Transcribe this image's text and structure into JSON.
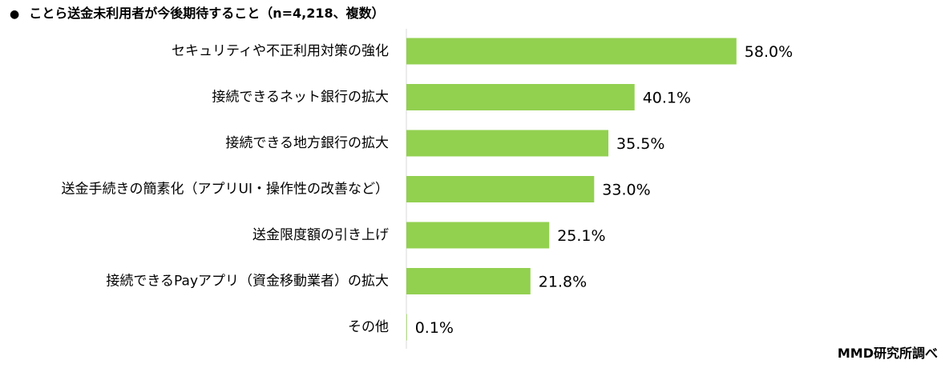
{
  "chart_data": {
    "type": "bar",
    "orientation": "horizontal",
    "title": "ことら送金未利用者が今後期待すること（n=4,218、複数）",
    "categories": [
      "セキュリティや不正利用対策の強化",
      "接続できるネット銀行の拡大",
      "接続できる地方銀行の拡大",
      "送金手続きの簡素化（アプリUI・操作性の改善など）",
      "送金限度額の引き上げ",
      "接続できるPayアプリ（資金移動業者）の拡大",
      "その他"
    ],
    "values": [
      58.0,
      40.1,
      35.5,
      33.0,
      25.1,
      21.8,
      0.1
    ],
    "value_labels": [
      "58.0%",
      "40.1%",
      "35.5%",
      "33.0%",
      "25.1%",
      "21.8%",
      "0.1%"
    ],
    "xlim": [
      0,
      100
    ],
    "bar_color": "#92d050",
    "axis_color": "#d9d9d9",
    "grid": false,
    "legend": "none"
  },
  "title_bullet": "●",
  "source_note": "MMD研究所調べ"
}
